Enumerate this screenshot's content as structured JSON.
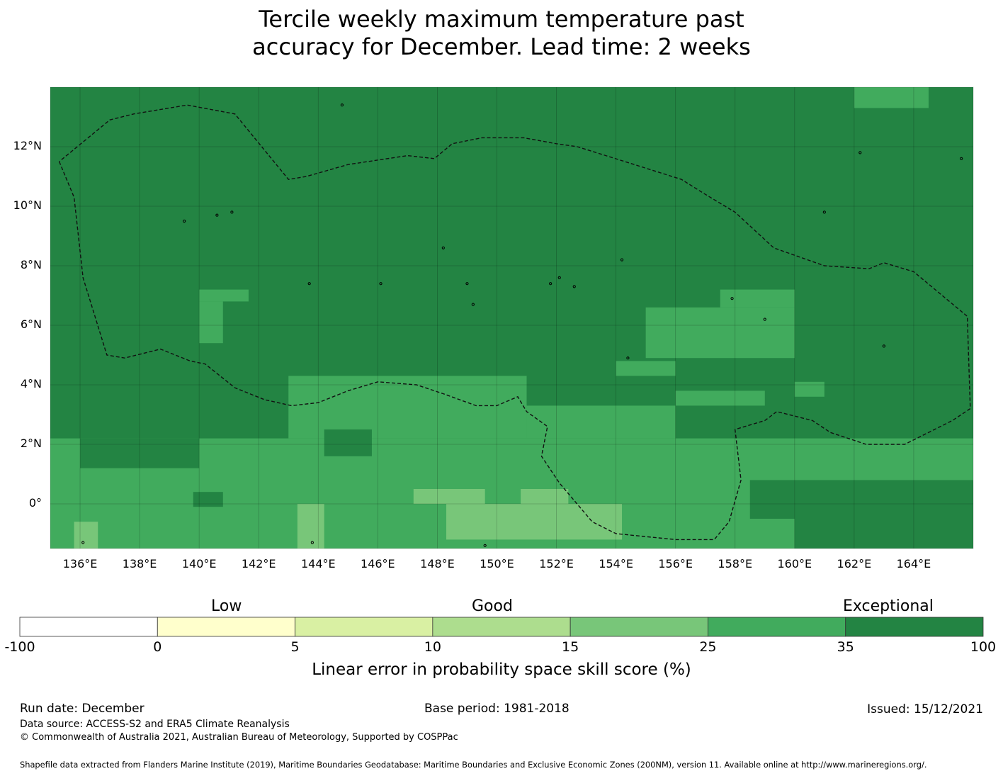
{
  "title": {
    "line1": "Tercile weekly maximum temperature past",
    "line2": "accuracy for December. Lead time: 2 weeks"
  },
  "map": {
    "lon_range": [
      135,
      166
    ],
    "lat_range": [
      -1.5,
      14
    ],
    "lon_ticks": [
      "136°E",
      "138°E",
      "140°E",
      "142°E",
      "144°E",
      "146°E",
      "148°E",
      "150°E",
      "152°E",
      "154°E",
      "156°E",
      "158°E",
      "160°E",
      "162°E",
      "164°E"
    ],
    "lat_ticks": [
      "12°N",
      "10°N",
      "8°N",
      "6°N",
      "4°N",
      "2°N",
      "0°"
    ],
    "default_category": 6,
    "grid_cells_deg": 0.83,
    "skill_patches": [
      {
        "category": 5,
        "lon": [
          140.0,
          141.66
        ],
        "lat": [
          6.8,
          7.2
        ]
      },
      {
        "category": 5,
        "lon": [
          140.0,
          140.8
        ],
        "lat": [
          5.4,
          6.8
        ]
      },
      {
        "category": 5,
        "lon": [
          155.0,
          160.0
        ],
        "lat": [
          4.9,
          6.6
        ]
      },
      {
        "category": 5,
        "lon": [
          157.5,
          160.0
        ],
        "lat": [
          6.6,
          7.2
        ]
      },
      {
        "category": 5,
        "lon": [
          160.0,
          161.0
        ],
        "lat": [
          3.6,
          4.1
        ]
      },
      {
        "category": 5,
        "lon": [
          162.0,
          164.5
        ],
        "lat": [
          13.3,
          14.0
        ]
      },
      {
        "category": 5,
        "lon": [
          135.0,
          166.0
        ],
        "lat": [
          -1.5,
          2.2
        ]
      },
      {
        "category": 5,
        "lon": [
          143.0,
          151.0
        ],
        "lat": [
          2.2,
          4.3
        ]
      },
      {
        "category": 5,
        "lon": [
          151.0,
          156.0
        ],
        "lat": [
          2.2,
          3.3
        ]
      },
      {
        "category": 5,
        "lon": [
          156.0,
          159.0
        ],
        "lat": [
          3.3,
          3.8
        ]
      },
      {
        "category": 5,
        "lon": [
          154.0,
          156.0
        ],
        "lat": [
          4.3,
          4.8
        ]
      },
      {
        "category": 6,
        "lon": [
          160.0,
          166.0
        ],
        "lat": [
          -1.5,
          0.8
        ]
      },
      {
        "category": 6,
        "lon": [
          158.5,
          160.0
        ],
        "lat": [
          -0.5,
          0.8
        ]
      },
      {
        "category": 6,
        "lon": [
          136.0,
          140.0
        ],
        "lat": [
          1.2,
          2.2
        ]
      },
      {
        "category": 6,
        "lon": [
          139.8,
          140.8
        ],
        "lat": [
          -0.1,
          0.4
        ]
      },
      {
        "category": 6,
        "lon": [
          144.2,
          145.8
        ],
        "lat": [
          1.6,
          2.5
        ]
      },
      {
        "category": 4,
        "lon": [
          143.3,
          144.2
        ],
        "lat": [
          -1.5,
          0.0
        ]
      },
      {
        "category": 4,
        "lon": [
          147.2,
          149.6
        ],
        "lat": [
          0.0,
          0.5
        ]
      },
      {
        "category": 4,
        "lon": [
          148.3,
          154.2
        ],
        "lat": [
          -1.2,
          0.0
        ]
      },
      {
        "category": 4,
        "lon": [
          150.8,
          152.4
        ],
        "lat": [
          0.0,
          0.5
        ]
      },
      {
        "category": 4,
        "lon": [
          135.8,
          136.6
        ],
        "lat": [
          -1.5,
          -0.6
        ]
      }
    ],
    "boundary_path_lonlat": [
      [
        135.3,
        11.5
      ],
      [
        135.8,
        10.3
      ],
      [
        136.1,
        7.6
      ],
      [
        136.9,
        5.0
      ],
      [
        137.5,
        4.9
      ],
      [
        138.7,
        5.2
      ],
      [
        139.7,
        4.8
      ],
      [
        140.2,
        4.7
      ],
      [
        141.2,
        3.9
      ],
      [
        142.2,
        3.5
      ],
      [
        143.1,
        3.3
      ],
      [
        144.0,
        3.4
      ],
      [
        145.0,
        3.8
      ],
      [
        146.0,
        4.1
      ],
      [
        147.3,
        4.0
      ],
      [
        148.2,
        3.7
      ],
      [
        149.3,
        3.3
      ],
      [
        150.0,
        3.3
      ],
      [
        150.7,
        3.6
      ],
      [
        151.0,
        3.1
      ],
      [
        151.7,
        2.6
      ],
      [
        151.5,
        1.6
      ],
      [
        152.1,
        0.7
      ],
      [
        153.2,
        -0.6
      ],
      [
        154.0,
        -1.0
      ],
      [
        156.0,
        -1.2
      ],
      [
        157.3,
        -1.2
      ],
      [
        157.8,
        -0.6
      ],
      [
        158.2,
        0.8
      ],
      [
        158.0,
        2.5
      ],
      [
        159.0,
        2.8
      ],
      [
        159.4,
        3.1
      ],
      [
        160.6,
        2.8
      ],
      [
        161.2,
        2.4
      ],
      [
        162.4,
        2.0
      ],
      [
        163.7,
        2.0
      ],
      [
        165.3,
        2.8
      ],
      [
        165.9,
        3.2
      ],
      [
        165.8,
        6.3
      ],
      [
        164.0,
        7.8
      ],
      [
        163.0,
        8.1
      ],
      [
        162.5,
        7.9
      ],
      [
        161.0,
        8.0
      ],
      [
        159.3,
        8.6
      ],
      [
        158.0,
        9.8
      ],
      [
        157.0,
        10.4
      ],
      [
        156.2,
        10.9
      ],
      [
        154.3,
        11.5
      ],
      [
        152.7,
        12.0
      ],
      [
        152.0,
        12.1
      ],
      [
        150.9,
        12.3
      ],
      [
        149.5,
        12.3
      ],
      [
        148.5,
        12.1
      ],
      [
        147.9,
        11.6
      ],
      [
        147.0,
        11.7
      ],
      [
        145.0,
        11.4
      ],
      [
        143.6,
        11.0
      ],
      [
        143.0,
        10.9
      ],
      [
        141.2,
        13.1
      ],
      [
        139.6,
        13.4
      ],
      [
        137.8,
        13.1
      ],
      [
        137.0,
        12.9
      ],
      [
        135.3,
        11.5
      ]
    ],
    "islands_lonlat": [
      [
        139.5,
        9.5
      ],
      [
        140.6,
        9.7
      ],
      [
        141.1,
        9.8
      ],
      [
        148.2,
        8.6
      ],
      [
        152.1,
        7.6
      ],
      [
        151.8,
        7.4
      ],
      [
        154.2,
        8.2
      ],
      [
        149.0,
        7.4
      ],
      [
        144.8,
        13.4
      ],
      [
        157.9,
        6.9
      ],
      [
        159.0,
        6.2
      ],
      [
        163.0,
        5.3
      ],
      [
        161.0,
        9.8
      ],
      [
        162.2,
        11.8
      ],
      [
        165.6,
        11.6
      ],
      [
        154.4,
        4.9
      ],
      [
        146.1,
        7.4
      ],
      [
        143.7,
        7.4
      ],
      [
        149.2,
        6.7
      ],
      [
        152.6,
        7.3
      ],
      [
        136.1,
        -1.3
      ],
      [
        143.8,
        -1.3
      ],
      [
        149.6,
        -1.4
      ]
    ]
  },
  "colorbar": {
    "boundaries": [
      "-100",
      "0",
      "5",
      "10",
      "15",
      "25",
      "35",
      "100"
    ],
    "colors": [
      "#ffffff",
      "#ffffcc",
      "#d9f0a3",
      "#addd8e",
      "#78c679",
      "#41ab5d",
      "#238443"
    ],
    "category_labels": {
      "low": "Low",
      "good": "Good",
      "exceptional": "Exceptional"
    },
    "title": "Linear error in probability space skill score (%)"
  },
  "footer": {
    "run_date": "Run date: December",
    "base_period": "Base period: 1981-2018",
    "issued": "Issued: 15/12/2021",
    "data_source": "Data source: ACCESS-S2 and ERA5 Climate Reanalysis",
    "copyright": "© Commonwealth of Australia 2021, Australian Bureau of Meteorology, Supported by COSPPac",
    "shapefile": "Shapefile data extracted from Flanders Marine Institute (2019), Maritime Boundaries Geodatabase: Maritime Boundaries and Exclusive Economic Zones (200NM), version 11. Available online at http://www.marineregions.org/."
  }
}
